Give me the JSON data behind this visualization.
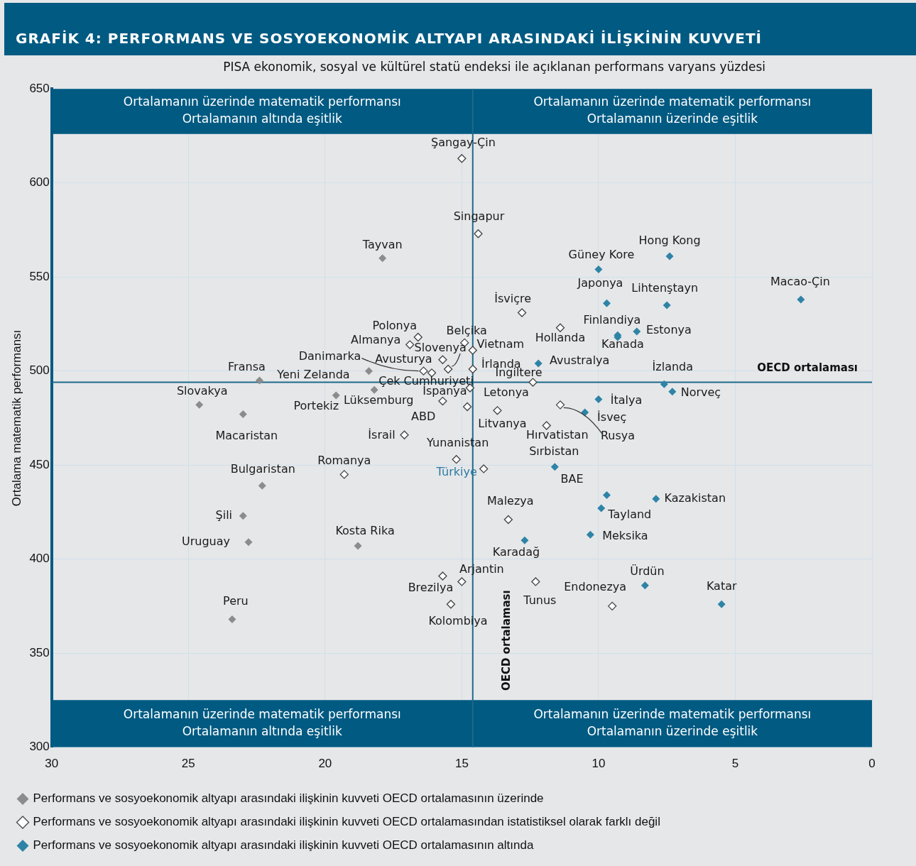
{
  "chart_data": {
    "type": "scatter",
    "title": "GRAFİK 4: PERFORMANS VE SOSYOEKONOMİK ALTYAPI ARASINDAKİ İLİŞKİNİN KUVVETİ",
    "xlabel": "PISA ekonomik, sosyal ve kültürel statü endeksi ile açıklanan performans varyans yüzdesi",
    "ylabel": "Ortalama matematik performansı",
    "xlim": [
      30,
      0
    ],
    "xticks": [
      30,
      25,
      20,
      15,
      10,
      5,
      0
    ],
    "ylim": [
      300,
      650
    ],
    "yticks": [
      300,
      350,
      400,
      450,
      500,
      550,
      600,
      650
    ],
    "grid": true,
    "legend": "bottom",
    "marker": "diamond",
    "series": [
      {
        "name": "Performans ve sosyoekonomik altyapı arasındaki ilişkinin kuvveti OECD ortalamasının üzerinde",
        "color": "#8c8c8c",
        "x": [
          17.9,
          18.4,
          18.2,
          19.6,
          22.4,
          24.6,
          23.0,
          22.3,
          23.0,
          22.8,
          18.8,
          23.4
        ],
        "values": [
          560,
          500,
          490,
          487,
          495,
          482,
          477,
          439,
          423,
          409,
          407,
          368
        ]
      },
      {
        "name": "Performans ve sosyoekonomik altyapı arasındaki ilişkinin kuvveti OECD ortalamasından istatistiksel olarak farklı değil",
        "color": "#ffffff",
        "x": [
          15.0,
          14.4,
          12.8,
          11.4,
          16.6,
          14.9,
          16.9,
          14.6,
          15.7,
          14.6,
          15.5,
          16.4,
          16.1,
          14.7,
          15.7,
          14.8,
          13.7,
          11.4,
          11.9,
          12.4,
          17.1,
          15.2,
          14.2,
          19.3,
          13.3,
          15.0,
          15.7,
          15.4,
          12.3,
          9.5
        ],
        "values": [
          613,
          573,
          531,
          523,
          518,
          515,
          514,
          511,
          506,
          501,
          501,
          500,
          499,
          491,
          484,
          481,
          479,
          482,
          471,
          494,
          466,
          453,
          448,
          445,
          421,
          388,
          391,
          376,
          388,
          375
        ]
      },
      {
        "name": "Performans ve sosyoekonomik altyapı arasındaki ilişkinin kuvveti OECD ortalamasının altında",
        "color": "#2e84a6",
        "x": [
          7.4,
          10.0,
          2.6,
          9.7,
          7.5,
          9.3,
          9.3,
          8.6,
          12.2,
          7.6,
          7.3,
          10.0,
          10.5,
          11.6,
          9.7,
          7.9,
          9.9,
          10.3,
          12.7,
          8.3,
          5.5
        ],
        "values": [
          561,
          554,
          538,
          536,
          535,
          519,
          518,
          521,
          504,
          493,
          489,
          485,
          478,
          449,
          434,
          432,
          427,
          413,
          410,
          386,
          376
        ]
      }
    ],
    "ref_lines": [
      {
        "axis": "x",
        "value": 14.6,
        "label": "OECD ortalaması",
        "color": "#1d6a8a"
      },
      {
        "axis": "y",
        "value": 494,
        "label": "OECD ortalaması",
        "color": "#1d6a8a"
      }
    ],
    "bands": [
      {
        "axis": "y",
        "from": 626,
        "to": 650,
        "color": "#005a82"
      },
      {
        "axis": "y",
        "from": 300,
        "to": 325,
        "color": "#005a82"
      }
    ],
    "annotations": [
      "Ortalamanın üzerinde matematik performansı\nOrtalamanın altında eşitlik",
      "Ortalamanın üzerinde matematik performansı\nOrtalamanın üzerinde eşitlik",
      "Ortalamanın üzerinde matematik performansı\nOrtalamanın altında eşitlik",
      "Ortalamanın üzerinde matematik performansı\nOrtalamanın üzerinde eşitlik",
      {
        "text": "Tayvan",
        "x": 17.9,
        "y": 560
      },
      {
        "text": "Yeni Zelanda",
        "x": 18.4,
        "y": 500
      },
      {
        "text": "Lüksemburg",
        "x": 18.2,
        "y": 490
      },
      {
        "text": "Portekiz",
        "x": 19.6,
        "y": 487
      },
      {
        "text": "Fransa",
        "x": 22.4,
        "y": 495
      },
      {
        "text": "Slovakya",
        "x": 24.6,
        "y": 482
      },
      {
        "text": "Macaristan",
        "x": 23.0,
        "y": 477
      },
      {
        "text": "Bulgaristan",
        "x": 22.3,
        "y": 439
      },
      {
        "text": "Şili",
        "x": 23.0,
        "y": 423
      },
      {
        "text": "Uruguay",
        "x": 22.8,
        "y": 409
      },
      {
        "text": "Kosta Rika",
        "x": 18.8,
        "y": 407
      },
      {
        "text": "Peru",
        "x": 23.4,
        "y": 368
      },
      {
        "text": "Şangay-Çin",
        "x": 15.0,
        "y": 613
      },
      {
        "text": "Singapur",
        "x": 14.4,
        "y": 573
      },
      {
        "text": "İsviçre",
        "x": 12.8,
        "y": 531
      },
      {
        "text": "Hollanda",
        "x": 11.4,
        "y": 523
      },
      {
        "text": "Polonya",
        "x": 16.6,
        "y": 518
      },
      {
        "text": "Belçika",
        "x": 14.9,
        "y": 515
      },
      {
        "text": "Almanya",
        "x": 16.9,
        "y": 514
      },
      {
        "text": "Vietnam",
        "x": 14.6,
        "y": 511
      },
      {
        "text": "Avusturya",
        "x": 15.7,
        "y": 506
      },
      {
        "text": "İrlanda",
        "x": 14.6,
        "y": 501
      },
      {
        "text": "Slovenya",
        "x": 15.5,
        "y": 501
      },
      {
        "text": "Danimarka",
        "x": 16.4,
        "y": 500
      },
      {
        "text": "Çek Cumhuriyeti",
        "x": 16.1,
        "y": 499
      },
      {
        "text": "Letonya",
        "x": 14.7,
        "y": 491
      },
      {
        "text": "İspanya",
        "x": 15.7,
        "y": 484
      },
      {
        "text": "ABD",
        "x": 14.8,
        "y": 481
      },
      {
        "text": "Litvanya",
        "x": 13.7,
        "y": 479
      },
      {
        "text": "Rusya",
        "x": 11.4,
        "y": 482
      },
      {
        "text": "Hırvatistan",
        "x": 11.9,
        "y": 471
      },
      {
        "text": "İngiltere",
        "x": 12.4,
        "y": 494
      },
      {
        "text": "İsrail",
        "x": 17.1,
        "y": 466
      },
      {
        "text": "Yunanistan",
        "x": 15.2,
        "y": 453
      },
      {
        "text": "Türkiye",
        "x": 14.2,
        "y": 448
      },
      {
        "text": "Romanya",
        "x": 19.3,
        "y": 445
      },
      {
        "text": "Malezya",
        "x": 13.3,
        "y": 421
      },
      {
        "text": "Arjantin",
        "x": 15.0,
        "y": 388
      },
      {
        "text": "Brezilya",
        "x": 15.7,
        "y": 391
      },
      {
        "text": "Kolombiya",
        "x": 15.4,
        "y": 376
      },
      {
        "text": "Tunus",
        "x": 12.3,
        "y": 388
      },
      {
        "text": "Endonezya",
        "x": 9.5,
        "y": 375
      },
      {
        "text": "Hong Kong",
        "x": 7.4,
        "y": 561
      },
      {
        "text": "Güney Kore",
        "x": 10.0,
        "y": 554
      },
      {
        "text": "Macao-Çin",
        "x": 2.6,
        "y": 538
      },
      {
        "text": "Japonya",
        "x": 9.7,
        "y": 536
      },
      {
        "text": "Lihtenştayn",
        "x": 7.5,
        "y": 535
      },
      {
        "text": "Finlandiya",
        "x": 9.3,
        "y": 519
      },
      {
        "text": "Kanada",
        "x": 9.3,
        "y": 518
      },
      {
        "text": "Estonya",
        "x": 8.6,
        "y": 521
      },
      {
        "text": "Avustralya",
        "x": 12.2,
        "y": 504
      },
      {
        "text": "İzlanda",
        "x": 7.6,
        "y": 493
      },
      {
        "text": "Norveç",
        "x": 7.3,
        "y": 489
      },
      {
        "text": "İtalya",
        "x": 10.0,
        "y": 485
      },
      {
        "text": "İsveç",
        "x": 10.5,
        "y": 478
      },
      {
        "text": "Sırbistan",
        "x": 11.6,
        "y": 449
      },
      {
        "text": "BAE",
        "x": 9.7,
        "y": 434
      },
      {
        "text": "Kazakistan",
        "x": 7.9,
        "y": 432
      },
      {
        "text": "Tayland",
        "x": 9.9,
        "y": 427
      },
      {
        "text": "Meksika",
        "x": 10.3,
        "y": 413
      },
      {
        "text": "Karadağ",
        "x": 12.7,
        "y": 410
      },
      {
        "text": "Ürdün",
        "x": 8.3,
        "y": 386
      },
      {
        "text": "Katar",
        "x": 5.5,
        "y": 376
      }
    ]
  }
}
